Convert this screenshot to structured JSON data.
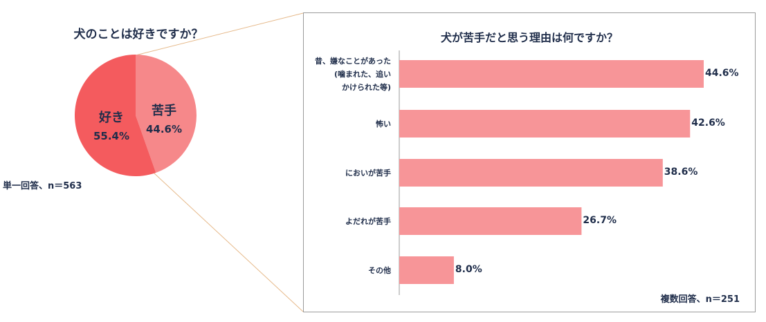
{
  "pie": {
    "title": "犬のことは好きですか？",
    "note": "単一回答、n＝563"
  },
  "bar": {
    "title": "犬が苦手だと思う理由は何ですか？",
    "note": "複数回答、n＝251"
  },
  "colors": {
    "pie_like": "#f45b5e",
    "pie_dislike": "#f6888a",
    "bar_fill": "#f79598",
    "text": "#1f2d4a",
    "connector": "#e6b98a"
  },
  "chart_data": [
    {
      "type": "pie",
      "title": "犬のことは好きですか？",
      "categories": [
        "好き",
        "苦手"
      ],
      "values": [
        55.4,
        44.6
      ],
      "value_labels": [
        "55.4%",
        "44.6%"
      ]
    },
    {
      "type": "bar",
      "orientation": "horizontal",
      "title": "犬が苦手だと思う理由は何ですか？",
      "categories": [
        [
          "昔、嫌なことがあった",
          "(噛まれた、追い",
          "かけられた等)"
        ],
        [
          "怖い"
        ],
        [
          "においが苦手"
        ],
        [
          "よだれが苦手"
        ],
        [
          "その他"
        ]
      ],
      "values": [
        44.6,
        42.6,
        38.6,
        26.7,
        8.0
      ],
      "value_labels": [
        "44.6%",
        "42.6%",
        "38.6%",
        "26.7%",
        "8.0%"
      ],
      "xlim": [
        0,
        50
      ]
    }
  ]
}
